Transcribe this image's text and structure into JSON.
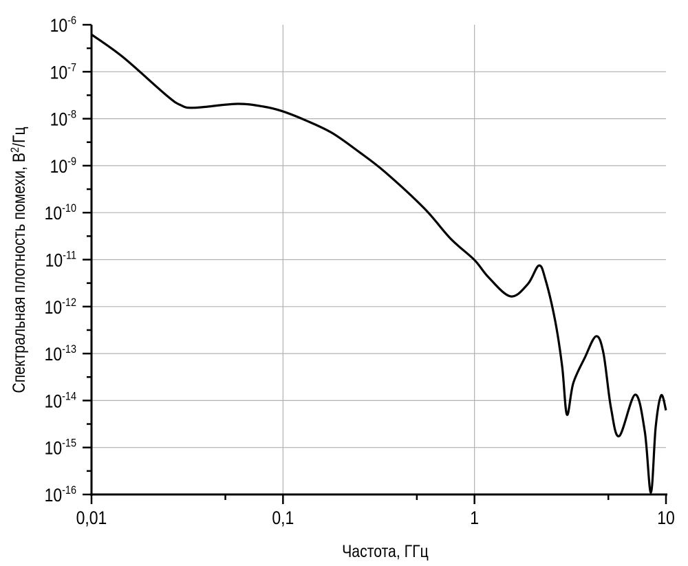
{
  "chart_data": {
    "type": "line",
    "title": "",
    "xlabel": "Частота, ГГц",
    "ylabel": "Спектральная плотность помехи, В²/Гц",
    "ylabel_parts": {
      "main": "Спектральная плотность помехи, В",
      "sup": "2",
      "tail": "/Гц"
    },
    "xscale": "log",
    "yscale": "log",
    "xlim": [
      0.01,
      10
    ],
    "ylim": [
      1e-16,
      1e-06
    ],
    "grid": true,
    "x_ticks": [
      {
        "value": 0.01,
        "label": "0,01"
      },
      {
        "value": 0.1,
        "label": "0,1"
      },
      {
        "value": 1,
        "label": "1"
      },
      {
        "value": 10,
        "label": "10"
      }
    ],
    "y_ticks": [
      {
        "value": 1e-06,
        "base": "10",
        "exp": "-6"
      },
      {
        "value": 1e-07,
        "base": "10",
        "exp": "-7"
      },
      {
        "value": 1e-08,
        "base": "10",
        "exp": "-8"
      },
      {
        "value": 1e-09,
        "base": "10",
        "exp": "-9"
      },
      {
        "value": 1e-10,
        "base": "10",
        "exp": "-10"
      },
      {
        "value": 1e-11,
        "base": "10",
        "exp": "-11"
      },
      {
        "value": 1e-12,
        "base": "10",
        "exp": "-12"
      },
      {
        "value": 1e-13,
        "base": "10",
        "exp": "-13"
      },
      {
        "value": 1e-14,
        "base": "10",
        "exp": "-14"
      },
      {
        "value": 1e-15,
        "base": "10",
        "exp": "-15"
      },
      {
        "value": 1e-16,
        "base": "10",
        "exp": "-16"
      }
    ],
    "series": [
      {
        "color": "#000000",
        "x": [
          0.01,
          0.0146,
          0.0245,
          0.0292,
          0.0343,
          0.0577,
          0.0792,
          0.0989,
          0.1315,
          0.18,
          0.248,
          0.34,
          0.547,
          0.75,
          1.0,
          1.184,
          1.542,
          1.897,
          2.17,
          2.35,
          2.64,
          2.87,
          3.04,
          3.28,
          3.77,
          4.31,
          4.71,
          5.16,
          5.7,
          6.9,
          7.75,
          8.34,
          8.84,
          9.44,
          10
        ],
        "y": [
          6.2e-07,
          2.05e-07,
          3.2e-08,
          1.95e-08,
          1.71e-08,
          2.07e-08,
          1.81e-08,
          1.45e-08,
          9.2e-09,
          5e-09,
          2e-09,
          7.4e-10,
          1.23e-10,
          2.8e-11,
          9.8e-12,
          4.2e-12,
          1.65e-12,
          3e-12,
          7.5e-12,
          3.7e-12,
          4.9e-13,
          5.3e-14,
          5e-15,
          2.35e-14,
          8.2e-14,
          2.33e-13,
          1.04e-13,
          7e-15,
          1.75e-15,
          1.33e-14,
          2.2e-15,
          1.1e-16,
          2.8e-15,
          1.29e-14,
          6.2e-15
        ]
      }
    ]
  }
}
